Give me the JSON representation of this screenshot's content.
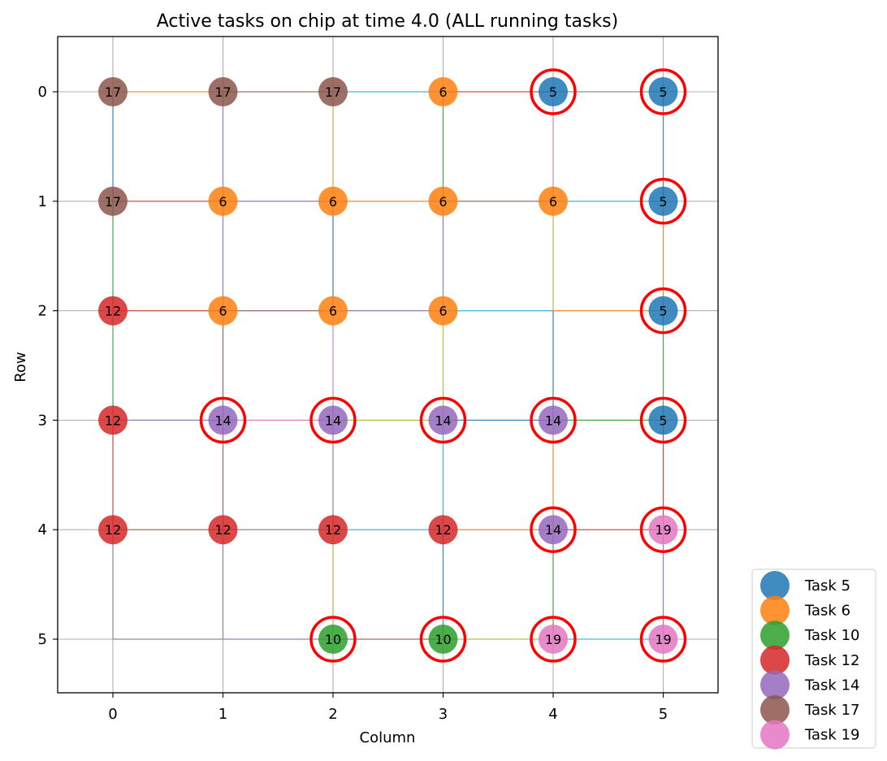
{
  "chart_data": {
    "type": "scatter",
    "title": "Active tasks on chip at time 4.0 (ALL running tasks)",
    "xlabel": "Column",
    "ylabel": "Row",
    "x_ticks": [
      0,
      1,
      2,
      3,
      4,
      5
    ],
    "y_ticks": [
      0,
      1,
      2,
      3,
      4,
      5
    ],
    "xlim": [
      -0.5,
      5.5
    ],
    "ylim": [
      5.5,
      -0.5
    ],
    "y_inverted": true,
    "grid": true,
    "legend_position": "lower-right outside",
    "task_colors": {
      "5": "#1f77b4",
      "6": "#ff7f0e",
      "10": "#2ca02c",
      "12": "#d62728",
      "14": "#9467bd",
      "17": "#8c564b",
      "19": "#e377c2"
    },
    "highlight_color": "#ff0000",
    "legend": [
      "Task 5",
      "Task 6",
      "Task 10",
      "Task 12",
      "Task 14",
      "Task 17",
      "Task 19"
    ],
    "legend_tasks": [
      5,
      6,
      10,
      12,
      14,
      17,
      19
    ],
    "cells": [
      {
        "row": 0,
        "col": 0,
        "task": 17,
        "highlight": false
      },
      {
        "row": 0,
        "col": 1,
        "task": 17,
        "highlight": false
      },
      {
        "row": 0,
        "col": 2,
        "task": 17,
        "highlight": false
      },
      {
        "row": 0,
        "col": 3,
        "task": 6,
        "highlight": false
      },
      {
        "row": 0,
        "col": 4,
        "task": 5,
        "highlight": true
      },
      {
        "row": 0,
        "col": 5,
        "task": 5,
        "highlight": true
      },
      {
        "row": 1,
        "col": 0,
        "task": 17,
        "highlight": false
      },
      {
        "row": 1,
        "col": 1,
        "task": 6,
        "highlight": false
      },
      {
        "row": 1,
        "col": 2,
        "task": 6,
        "highlight": false
      },
      {
        "row": 1,
        "col": 3,
        "task": 6,
        "highlight": false
      },
      {
        "row": 1,
        "col": 4,
        "task": 6,
        "highlight": false
      },
      {
        "row": 1,
        "col": 5,
        "task": 5,
        "highlight": true
      },
      {
        "row": 2,
        "col": 0,
        "task": 12,
        "highlight": false
      },
      {
        "row": 2,
        "col": 1,
        "task": 6,
        "highlight": false
      },
      {
        "row": 2,
        "col": 2,
        "task": 6,
        "highlight": false
      },
      {
        "row": 2,
        "col": 3,
        "task": 6,
        "highlight": false
      },
      {
        "row": 2,
        "col": 5,
        "task": 5,
        "highlight": true
      },
      {
        "row": 3,
        "col": 0,
        "task": 12,
        "highlight": false
      },
      {
        "row": 3,
        "col": 1,
        "task": 14,
        "highlight": true
      },
      {
        "row": 3,
        "col": 2,
        "task": 14,
        "highlight": true
      },
      {
        "row": 3,
        "col": 3,
        "task": 14,
        "highlight": true
      },
      {
        "row": 3,
        "col": 4,
        "task": 14,
        "highlight": true
      },
      {
        "row": 3,
        "col": 5,
        "task": 5,
        "highlight": true
      },
      {
        "row": 4,
        "col": 0,
        "task": 12,
        "highlight": false
      },
      {
        "row": 4,
        "col": 1,
        "task": 12,
        "highlight": false
      },
      {
        "row": 4,
        "col": 2,
        "task": 12,
        "highlight": false
      },
      {
        "row": 4,
        "col": 3,
        "task": 12,
        "highlight": false
      },
      {
        "row": 4,
        "col": 4,
        "task": 14,
        "highlight": true
      },
      {
        "row": 4,
        "col": 5,
        "task": 19,
        "highlight": true
      },
      {
        "row": 5,
        "col": 2,
        "task": 10,
        "highlight": true
      },
      {
        "row": 5,
        "col": 3,
        "task": 10,
        "highlight": true
      },
      {
        "row": 5,
        "col": 4,
        "task": 19,
        "highlight": true
      },
      {
        "row": 5,
        "col": 5,
        "task": 19,
        "highlight": true
      }
    ],
    "h_links": [
      {
        "row": 0,
        "col": 0,
        "color": "#ff7f0e"
      },
      {
        "row": 0,
        "col": 1,
        "color": "#8c564b"
      },
      {
        "row": 0,
        "col": 2,
        "color": "#17becf"
      },
      {
        "row": 0,
        "col": 3,
        "color": "#d62728"
      },
      {
        "row": 0,
        "col": 4,
        "color": "#7f7f7f"
      },
      {
        "row": 1,
        "col": 0,
        "color": "#d62728"
      },
      {
        "row": 1,
        "col": 1,
        "color": "#9467bd"
      },
      {
        "row": 1,
        "col": 2,
        "color": "#ff7f0e"
      },
      {
        "row": 1,
        "col": 3,
        "color": "#8c564b"
      },
      {
        "row": 1,
        "col": 4,
        "color": "#17becf"
      },
      {
        "row": 2,
        "col": 0,
        "color": "#d62728"
      },
      {
        "row": 2,
        "col": 1,
        "color": "#8c564b"
      },
      {
        "row": 2,
        "col": 2,
        "color": "#9467bd"
      },
      {
        "row": 2,
        "col": 3,
        "color": "#17becf"
      },
      {
        "row": 2,
        "col": 4,
        "color": "#ff7f0e"
      },
      {
        "row": 3,
        "col": 0,
        "color": "#9467bd"
      },
      {
        "row": 3,
        "col": 1,
        "color": "#e377c2"
      },
      {
        "row": 3,
        "col": 2,
        "color": "#bcbd22"
      },
      {
        "row": 3,
        "col": 3,
        "color": "#1f77b4"
      },
      {
        "row": 3,
        "col": 4,
        "color": "#2ca02c"
      },
      {
        "row": 4,
        "col": 0,
        "color": "#8c564b"
      },
      {
        "row": 4,
        "col": 1,
        "color": "#7f7f7f"
      },
      {
        "row": 4,
        "col": 2,
        "color": "#17becf"
      },
      {
        "row": 4,
        "col": 3,
        "color": "#ff7f0e"
      },
      {
        "row": 4,
        "col": 4,
        "color": "#d62728"
      },
      {
        "row": 5,
        "col": 0,
        "color": "#7f7f7f"
      },
      {
        "row": 5,
        "col": 1,
        "color": "#9467bd"
      },
      {
        "row": 5,
        "col": 2,
        "color": "#8c564b"
      },
      {
        "row": 5,
        "col": 3,
        "color": "#bcbd22"
      },
      {
        "row": 5,
        "col": 4,
        "color": "#17becf"
      }
    ],
    "v_links": [
      {
        "row": 0,
        "col": 0,
        "color": "#1f77b4"
      },
      {
        "row": 0,
        "col": 1,
        "color": "#9467bd"
      },
      {
        "row": 0,
        "col": 2,
        "color": "#bcbd22"
      },
      {
        "row": 0,
        "col": 3,
        "color": "#2ca02c"
      },
      {
        "row": 0,
        "col": 4,
        "color": "#e377c2"
      },
      {
        "row": 0,
        "col": 5,
        "color": "#1f77b4"
      },
      {
        "row": 1,
        "col": 0,
        "color": "#2ca02c"
      },
      {
        "row": 1,
        "col": 1,
        "color": "#9467bd"
      },
      {
        "row": 1,
        "col": 2,
        "color": "#1f77b4"
      },
      {
        "row": 1,
        "col": 3,
        "color": "#9467bd"
      },
      {
        "row": 1,
        "col": 4,
        "color": "#bcbd22"
      },
      {
        "row": 1,
        "col": 5,
        "color": "#ff7f0e"
      },
      {
        "row": 2,
        "col": 0,
        "color": "#2ca02c"
      },
      {
        "row": 2,
        "col": 1,
        "color": "#8c564b"
      },
      {
        "row": 2,
        "col": 2,
        "color": "#e377c2"
      },
      {
        "row": 2,
        "col": 3,
        "color": "#bcbd22"
      },
      {
        "row": 2,
        "col": 4,
        "color": "#1f77b4"
      },
      {
        "row": 2,
        "col": 5,
        "color": "#2ca02c"
      },
      {
        "row": 3,
        "col": 0,
        "color": "#d62728"
      },
      {
        "row": 3,
        "col": 1,
        "color": "#8c564b"
      },
      {
        "row": 3,
        "col": 2,
        "color": "#9467bd"
      },
      {
        "row": 3,
        "col": 3,
        "color": "#17becf"
      },
      {
        "row": 3,
        "col": 4,
        "color": "#ff7f0e"
      },
      {
        "row": 3,
        "col": 5,
        "color": "#d62728"
      },
      {
        "row": 4,
        "col": 0,
        "color": "#7f7f7f"
      },
      {
        "row": 4,
        "col": 1,
        "color": "#7f7f7f"
      },
      {
        "row": 4,
        "col": 2,
        "color": "#bcbd22"
      },
      {
        "row": 4,
        "col": 3,
        "color": "#1f77b4"
      },
      {
        "row": 4,
        "col": 4,
        "color": "#2ca02c"
      },
      {
        "row": 4,
        "col": 5,
        "color": "#9467bd"
      }
    ]
  }
}
